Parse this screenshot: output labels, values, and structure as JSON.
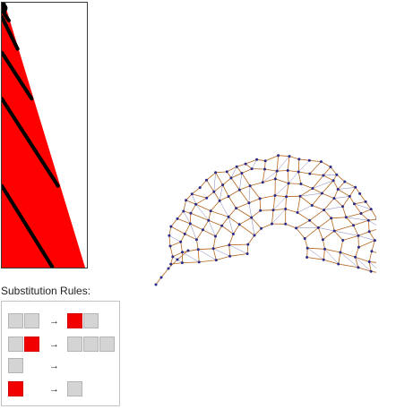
{
  "rules_panel": {
    "title": "Substitution Rules:",
    "arrow": "→",
    "rules": [
      {
        "lhs": [
          "gray",
          "gray"
        ],
        "rhs": [
          "red",
          "gray"
        ]
      },
      {
        "lhs": [
          "gray",
          "red"
        ],
        "rhs": [
          "gray",
          "gray",
          "gray"
        ]
      },
      {
        "lhs": [
          "gray"
        ],
        "rhs": []
      },
      {
        "lhs": [
          "red"
        ],
        "rhs": [
          "gray"
        ]
      }
    ]
  },
  "colors": {
    "red_cell": "#f20000",
    "gray_cell": "#d4d4d4",
    "evolution_fill": "#ff0000",
    "evolution_marks": "#000000",
    "graph_edges": "#b5651d",
    "graph_nodes": "#2a2a8a"
  }
}
